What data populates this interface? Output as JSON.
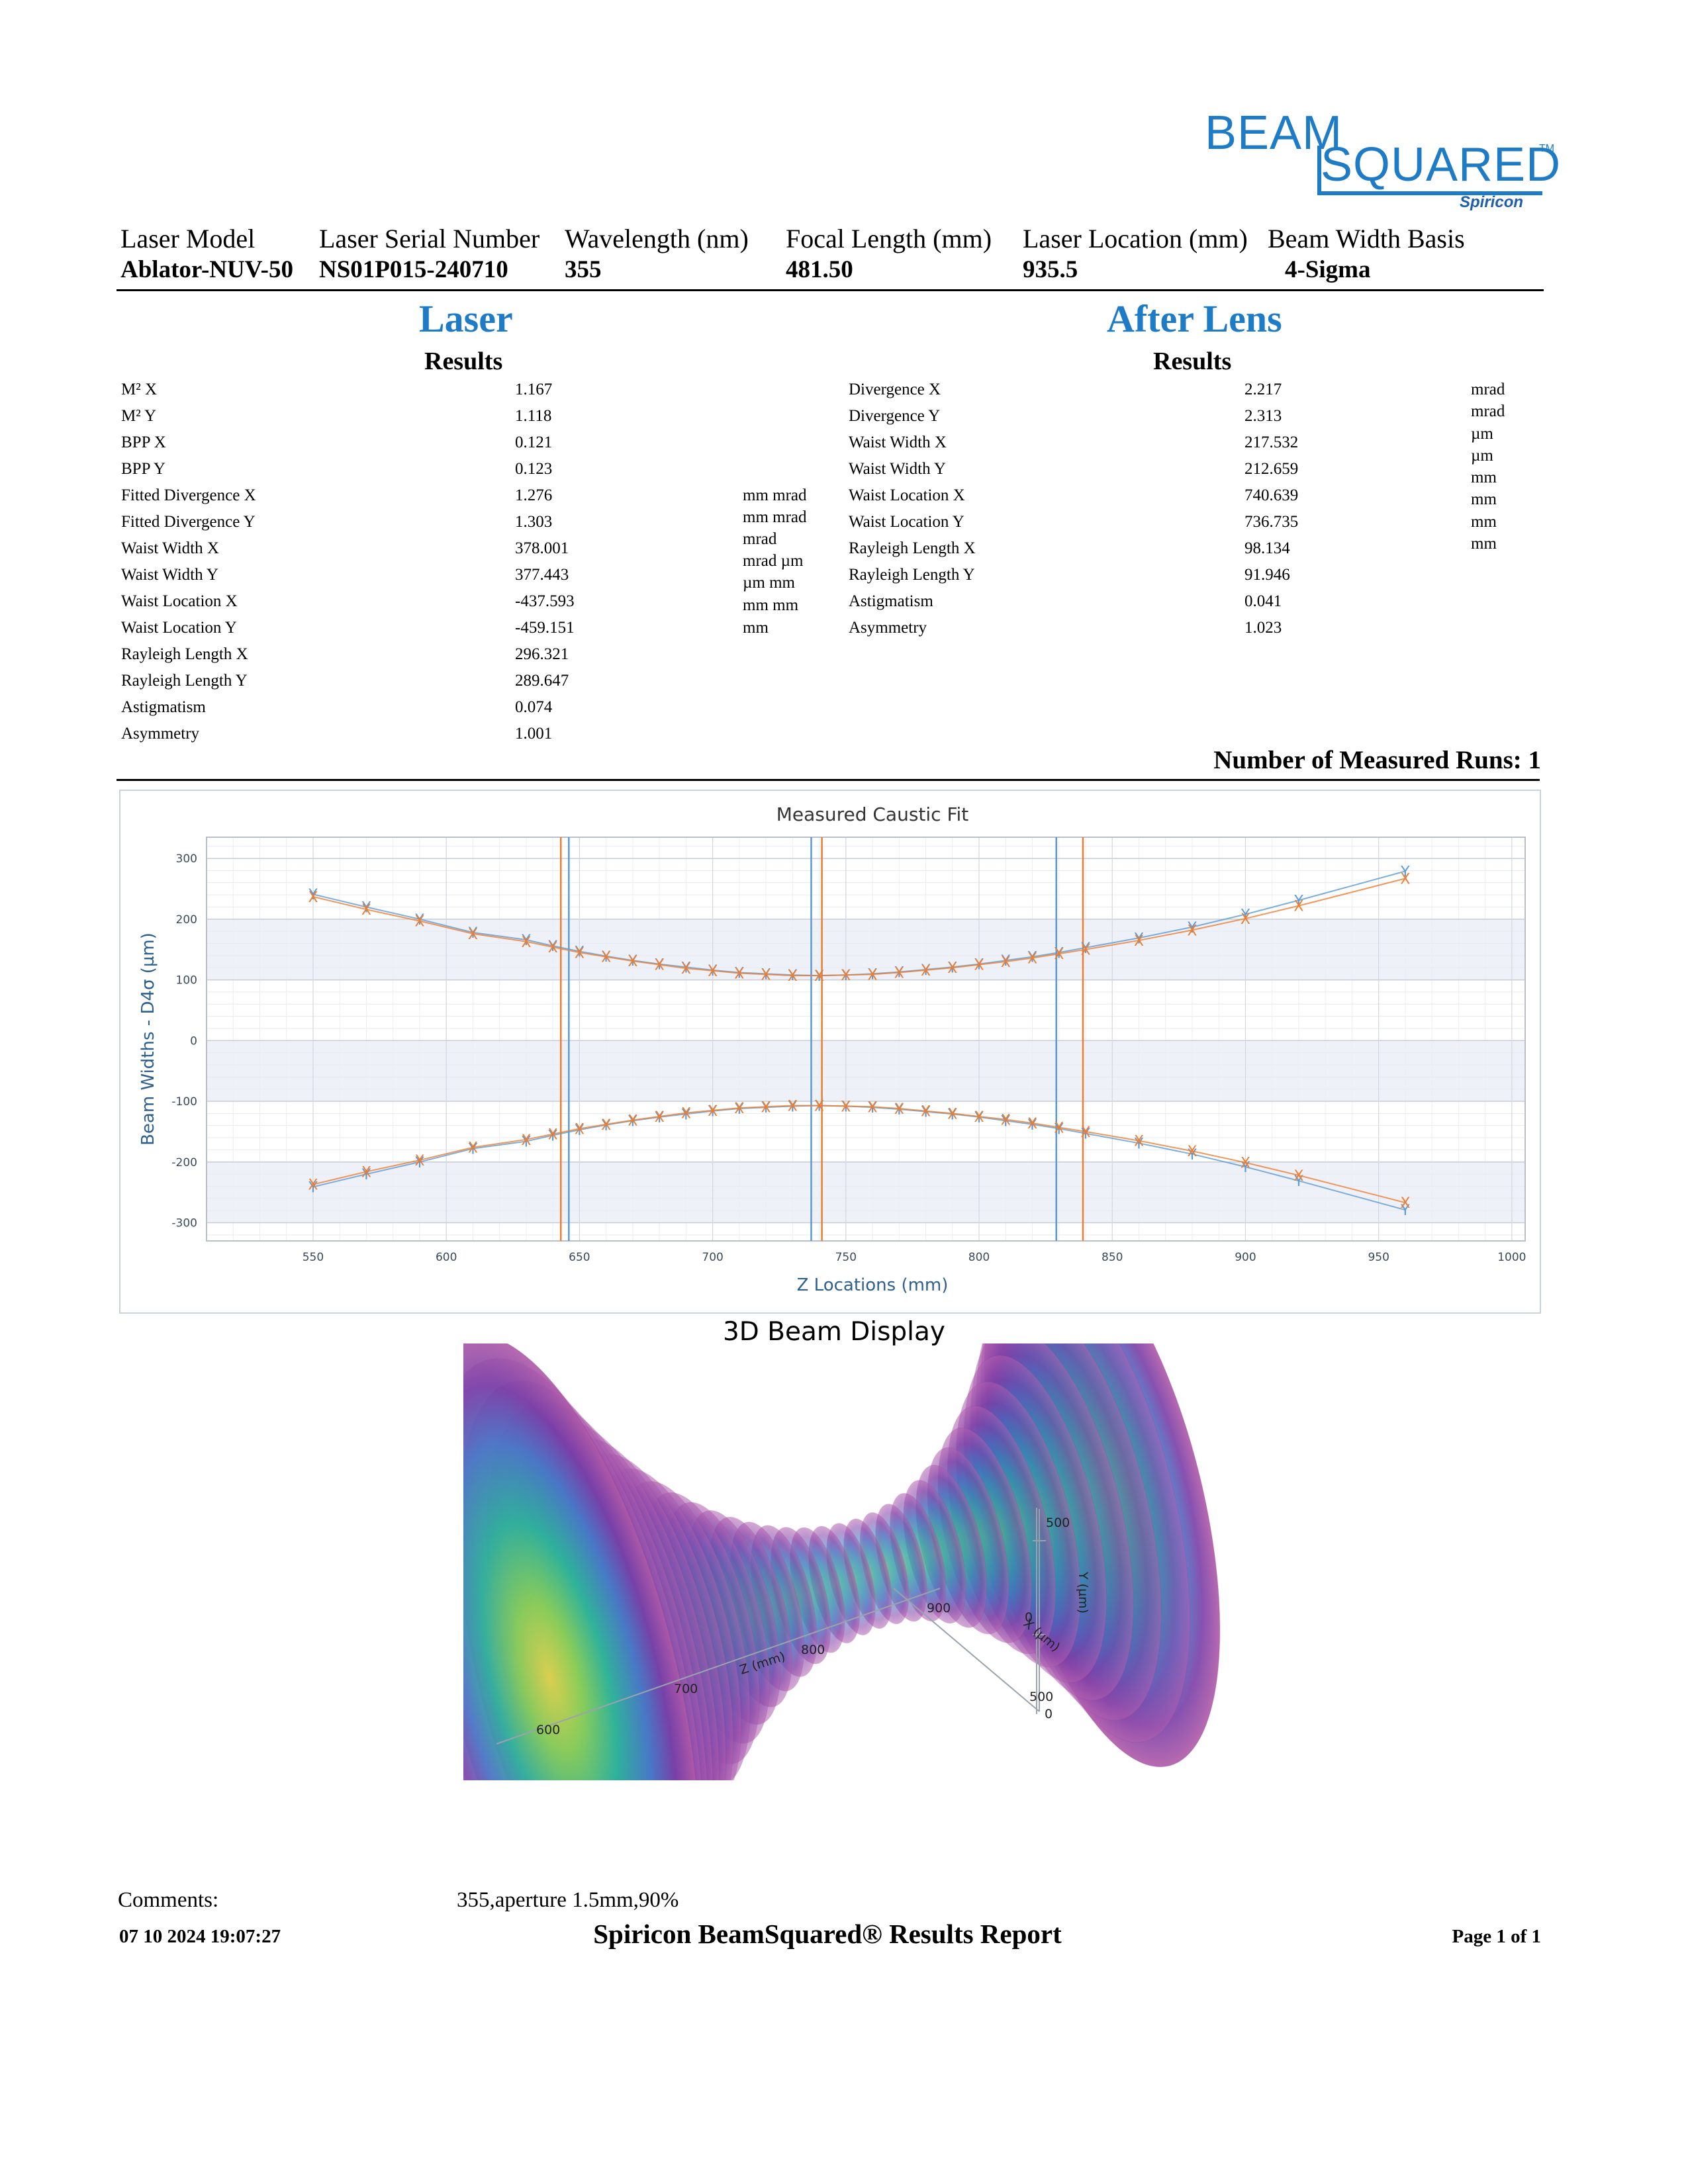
{
  "logo": {
    "line1": "BEAM",
    "line2": "SQUARED",
    "tm": "TM",
    "brand": "Spiricon"
  },
  "header": {
    "columns": [
      {
        "label": "Laser Model",
        "value": "Ablator-NUV-50"
      },
      {
        "label": "Laser Serial Number",
        "value": "NS01P015-240710"
      },
      {
        "label": "Wavelength (nm)",
        "value": "355"
      },
      {
        "label": "Focal Length (mm)",
        "value": "481.50"
      },
      {
        "label": "Laser Location (mm)",
        "value": "935.5"
      },
      {
        "label": "Beam Width Basis",
        "value": "4-Sigma"
      }
    ]
  },
  "laser": {
    "title": "Laser",
    "subtitle": "Results",
    "rows": [
      {
        "name": "M² X",
        "value": "1.167"
      },
      {
        "name": "M² Y",
        "value": "1.118"
      },
      {
        "name": "BPP X",
        "value": "0.121"
      },
      {
        "name": "BPP Y",
        "value": "0.123"
      },
      {
        "name": "Fitted Divergence X",
        "value": "1.276"
      },
      {
        "name": "Fitted Divergence Y",
        "value": "1.303"
      },
      {
        "name": "Waist Width X",
        "value": "378.001"
      },
      {
        "name": "Waist Width Y",
        "value": "377.443"
      },
      {
        "name": "Waist Location X",
        "value": "-437.593"
      },
      {
        "name": "Waist Location Y",
        "value": "-459.151"
      },
      {
        "name": "Rayleigh Length X",
        "value": "296.321"
      },
      {
        "name": "Rayleigh Length Y",
        "value": "289.647"
      },
      {
        "name": "Astigmatism",
        "value": "0.074"
      },
      {
        "name": "Asymmetry",
        "value": "1.001"
      }
    ],
    "units": [
      "mm mrad",
      "mm mrad",
      "mrad",
      "mrad µm",
      "µm mm",
      "mm mm",
      "mm"
    ]
  },
  "after_lens": {
    "title": "After Lens",
    "subtitle": "Results",
    "rows": [
      {
        "name": "Divergence X",
        "value": "2.217"
      },
      {
        "name": "Divergence Y",
        "value": "2.313"
      },
      {
        "name": "Waist Width X",
        "value": "217.532"
      },
      {
        "name": "Waist Width Y",
        "value": "212.659"
      },
      {
        "name": "Waist Location X",
        "value": "740.639"
      },
      {
        "name": "Waist Location Y",
        "value": "736.735"
      },
      {
        "name": "Rayleigh Length X",
        "value": "98.134"
      },
      {
        "name": "Rayleigh Length Y",
        "value": "91.946"
      },
      {
        "name": "Astigmatism",
        "value": "0.041"
      },
      {
        "name": "Asymmetry",
        "value": "1.023"
      }
    ],
    "units": [
      "mrad",
      "mrad",
      "µm",
      "µm",
      "mm",
      "mm",
      "mm",
      "mm"
    ]
  },
  "runs_text": "Number of Measured Runs: 1",
  "chart_data": {
    "type": "scatter",
    "title": "Measured Caustic Fit",
    "xlabel": "Z Locations (mm)",
    "ylabel": "Beam Widths - D4σ (µm)",
    "xlim": [
      510,
      1005
    ],
    "ylim": [
      -330,
      335
    ],
    "xticks": [
      550,
      600,
      650,
      700,
      750,
      800,
      850,
      900,
      950,
      1000
    ],
    "yticks": [
      300,
      200,
      100,
      0,
      -100,
      -200,
      -300
    ],
    "grid": true,
    "colors": {
      "x": "#5b9bd5",
      "y": "#ed7d31"
    },
    "series": [
      {
        "name": "X",
        "marker": "Y",
        "x": [
          550,
          570,
          590,
          610,
          630,
          640,
          650,
          660,
          670,
          680,
          690,
          700,
          710,
          720,
          730,
          740,
          750,
          760,
          770,
          780,
          790,
          800,
          810,
          820,
          830,
          840,
          860,
          880,
          900,
          920,
          960
        ],
        "values": [
          241,
          220,
          200,
          178,
          166,
          156,
          147,
          139,
          132,
          126,
          121,
          116,
          112,
          110,
          108,
          107,
          108,
          110,
          113,
          117,
          121,
          126,
          132,
          138,
          145,
          153,
          169,
          187,
          208,
          231,
          279
        ]
      },
      {
        "name": "Y",
        "marker": "X",
        "x": [
          550,
          570,
          590,
          610,
          630,
          640,
          650,
          660,
          670,
          680,
          690,
          700,
          710,
          720,
          730,
          740,
          750,
          760,
          770,
          780,
          790,
          800,
          810,
          820,
          830,
          840,
          860,
          880,
          900,
          920,
          960
        ],
        "values": [
          237,
          216,
          197,
          176,
          163,
          154,
          145,
          138,
          131,
          125,
          119,
          115,
          111,
          109,
          107,
          107,
          108,
          109,
          112,
          116,
          120,
          125,
          130,
          136,
          143,
          150,
          165,
          182,
          201,
          222,
          267
        ]
      }
    ],
    "vlines": [
      {
        "z": 643,
        "series": "Y"
      },
      {
        "z": 646,
        "series": "X"
      },
      {
        "z": 737,
        "series": "X"
      },
      {
        "z": 741,
        "series": "Y"
      },
      {
        "z": 829,
        "series": "X"
      },
      {
        "z": 839,
        "series": "Y"
      }
    ]
  },
  "beam3d": {
    "title": "3D Beam Display",
    "labels": {
      "z_axis": "Z (mm)",
      "x_axis": "X (µm)",
      "y_axis": "Y (µm)",
      "z600": "600",
      "z700": "700",
      "z800": "800",
      "z900": "900",
      "x0": "0",
      "x500": "500",
      "y0": "0",
      "y500": "500"
    }
  },
  "footer": {
    "comments_label": "Comments:",
    "comments_value": "355,aperture 1.5mm,90%",
    "date": "07 10 2024 19:07:27",
    "title": "Spiricon BeamSquared® Results Report",
    "page": "Page 1 of 1"
  }
}
